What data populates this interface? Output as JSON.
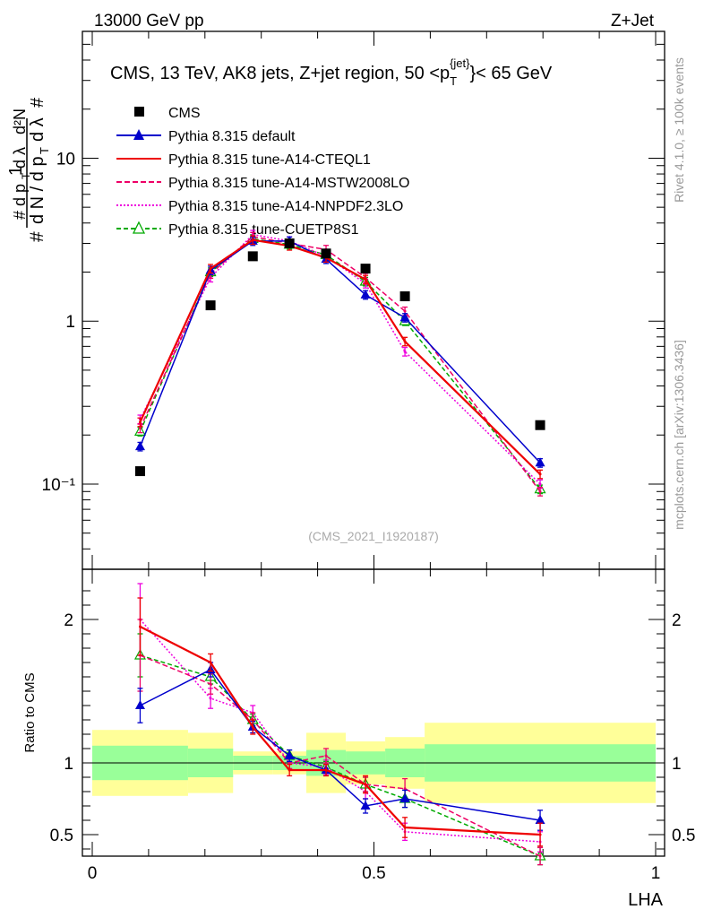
{
  "header": {
    "energy_label": "13000 GeV pp",
    "process_label": "Z+Jet"
  },
  "side_labels": {
    "rivet": "Rivet 4.1.0, ≥ 100k events",
    "mcplots": "mcplots.cern.ch [arXiv:1306.3436]"
  },
  "chart_data": {
    "type": "line",
    "title": "CMS, 13 TeV, AK8 jets, Z+jet region, 50 <p_T^{jet}< 65 GeV",
    "title_parts": {
      "main": "CMS, 13 TeV, AK8 jets, Z+jet region, 50 <p",
      "sub": "T",
      "sup": "{jet}",
      "tail": "}< 65 GeV"
    },
    "analysis_id": "(CMS_2021_I1920187)",
    "xlabel": "LHA",
    "ylabel_main": "1/N dN/dp_T dλ (d²N / dp_T dλ)",
    "ylabel_ratio": "Ratio to CMS",
    "xlim": [
      0,
      1
    ],
    "x_ticks": [
      0,
      0.5,
      1
    ],
    "x_tick_labels": [
      "0",
      "0.5",
      "1"
    ],
    "ylim_main": [
      0.03,
      60
    ],
    "main_y_scale": "log",
    "main_y_ticks": [
      0.1,
      1,
      10
    ],
    "main_y_tick_labels": [
      "10⁻¹",
      "1",
      "10"
    ],
    "ylim_ratio": [
      0.35,
      2.35
    ],
    "ratio_y_ticks": [
      0.5,
      1,
      2
    ],
    "ratio_y_tick_labels": [
      "0.5",
      "1",
      "2"
    ],
    "bins": [
      [
        0.0,
        0.17
      ],
      [
        0.17,
        0.25
      ],
      [
        0.25,
        0.32
      ],
      [
        0.32,
        0.38
      ],
      [
        0.38,
        0.45
      ],
      [
        0.45,
        0.52
      ],
      [
        0.52,
        0.59
      ],
      [
        0.59,
        1.0
      ]
    ],
    "x": [
      0.085,
      0.21,
      0.285,
      0.35,
      0.415,
      0.485,
      0.555,
      0.795
    ],
    "data": {
      "name": "CMS",
      "values": [
        0.12,
        1.25,
        2.5,
        3.0,
        2.6,
        2.1,
        1.42,
        0.23
      ],
      "band_stat": [
        0.12,
        0.1,
        0.05,
        0.05,
        0.09,
        0.08,
        0.1,
        0.13
      ],
      "band_total": [
        0.23,
        0.21,
        0.08,
        0.08,
        0.21,
        0.15,
        0.18,
        0.28
      ]
    },
    "series": [
      {
        "name": "Pythia 8.315 default",
        "color": "#0000cc",
        "dash": "",
        "marker": "triangle",
        "values": [
          0.17,
          2.05,
          3.1,
          3.1,
          2.4,
          1.45,
          1.05,
          0.135
        ],
        "ratio": [
          1.4,
          1.65,
          1.25,
          1.05,
          0.95,
          0.7,
          0.75,
          0.6
        ],
        "ratio_err": [
          0.12,
          0.05,
          0.04,
          0.04,
          0.04,
          0.05,
          0.06,
          0.07
        ]
      },
      {
        "name": "Pythia 8.315 tune-A14-CTEQL1",
        "color": "#ee0000",
        "dash": "",
        "marker": "none",
        "values": [
          0.24,
          2.1,
          3.15,
          2.9,
          2.45,
          1.8,
          0.75,
          0.115
        ],
        "ratio": [
          1.95,
          1.7,
          1.25,
          0.95,
          0.95,
          0.85,
          0.55,
          0.5
        ],
        "ratio_err": [
          0.2,
          0.06,
          0.05,
          0.04,
          0.04,
          0.06,
          0.07,
          0.08
        ]
      },
      {
        "name": "Pythia 8.315 tune-A14-MSTW2008LO",
        "color": "#ee0066",
        "dash": "6,3",
        "marker": "none",
        "values": [
          0.22,
          1.95,
          3.3,
          3.0,
          2.75,
          1.85,
          1.15,
          0.09
        ],
        "ratio": [
          1.75,
          1.55,
          1.3,
          1.0,
          1.05,
          0.85,
          0.82,
          0.35
        ],
        "ratio_err": [
          0.25,
          0.07,
          0.05,
          0.04,
          0.05,
          0.05,
          0.07,
          0.06
        ]
      },
      {
        "name": "Pythia 8.315 tune-A14-NNPDF2.3LO",
        "color": "#ee00dd",
        "dash": "2,2",
        "marker": "none",
        "values": [
          0.25,
          1.85,
          3.4,
          3.1,
          2.5,
          1.7,
          0.65,
          0.1
        ],
        "ratio": [
          2.0,
          1.45,
          1.35,
          1.0,
          0.97,
          0.8,
          0.52,
          0.45
        ],
        "ratio_err": [
          0.25,
          0.07,
          0.05,
          0.04,
          0.05,
          0.05,
          0.06,
          0.07
        ]
      },
      {
        "name": "Pythia 8.315 tune-CUETP8S1",
        "color": "#00aa00",
        "dash": "5,3",
        "marker": "open-triangle",
        "values": [
          0.21,
          2.0,
          3.2,
          2.95,
          2.55,
          1.75,
          1.0,
          0.093
        ],
        "ratio": [
          1.75,
          1.6,
          1.3,
          1.05,
          0.97,
          0.85,
          0.75,
          0.35
        ],
        "ratio_err": [
          0.15,
          0.05,
          0.04,
          0.04,
          0.04,
          0.05,
          0.06,
          0.06
        ]
      }
    ],
    "legend_position": "top-left"
  }
}
